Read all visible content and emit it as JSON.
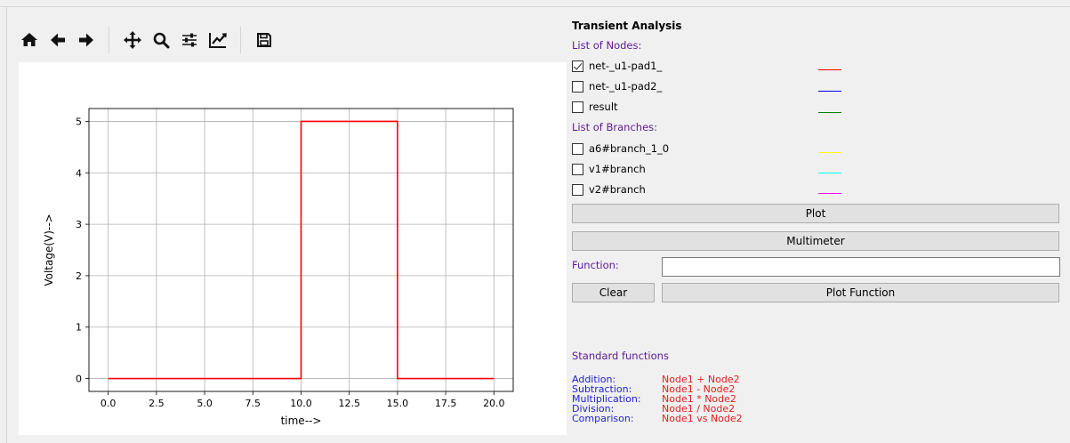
{
  "toolbar": {
    "buttons": [
      "home-icon",
      "back-arrow-icon",
      "forward-arrow-icon",
      "pan-icon",
      "zoom-icon",
      "configure-subplots-icon",
      "edit-axis-icon",
      "save-icon"
    ]
  },
  "panel": {
    "title": "Transient Analysis",
    "nodes_label": "List of Nodes:",
    "nodes": [
      {
        "label": "net-_u1-pad1_",
        "checked": true,
        "color": "#ff0000"
      },
      {
        "label": "net-_u1-pad2_",
        "checked": false,
        "color": "#0000ff"
      },
      {
        "label": "result",
        "checked": false,
        "color": "#008000"
      }
    ],
    "branches_label": "List of Branches:",
    "branches": [
      {
        "label": "a6#branch_1_0",
        "checked": false,
        "color": "#ffff00"
      },
      {
        "label": "v1#branch",
        "checked": false,
        "color": "#00ffff"
      },
      {
        "label": "v2#branch",
        "checked": false,
        "color": "#ff00ff"
      }
    ],
    "plot_button": "Plot",
    "multimeter_button": "Multimeter",
    "function_label": "Function:",
    "function_value": "",
    "clear_button": "Clear",
    "plot_function_button": "Plot Function",
    "standard_functions_title": "Standard functions",
    "standard_functions": [
      {
        "name": "Addition:",
        "expr": "Node1 + Node2"
      },
      {
        "name": "Subtraction:",
        "expr": "Node1 - Node2"
      },
      {
        "name": "Multiplication:",
        "expr": "Node1 * Node2"
      },
      {
        "name": "Division:",
        "expr": "Node1 / Node2"
      },
      {
        "name": "Comparison:",
        "expr": "Node1 vs Node2"
      }
    ]
  },
  "chart_data": {
    "type": "line",
    "xlabel": "time-->",
    "ylabel": "Voltage(V)-->",
    "xlim": [
      -1.0,
      21.0
    ],
    "ylim": [
      -0.25,
      5.25
    ],
    "xticks": [
      0.0,
      2.5,
      5.0,
      7.5,
      10.0,
      12.5,
      15.0,
      17.5,
      20.0
    ],
    "xtick_labels": [
      "0.0",
      "2.5",
      "5.0",
      "7.5",
      "10.0",
      "12.5",
      "15.0",
      "17.5",
      "20.0"
    ],
    "yticks": [
      0,
      1,
      2,
      3,
      4,
      5
    ],
    "ytick_labels": [
      "0",
      "1",
      "2",
      "3",
      "4",
      "5"
    ],
    "grid": true,
    "series": [
      {
        "color": "#ff0000",
        "x": [
          0,
          10,
          10,
          15,
          15,
          20
        ],
        "y": [
          0,
          0,
          5,
          5,
          0,
          0
        ]
      }
    ]
  }
}
